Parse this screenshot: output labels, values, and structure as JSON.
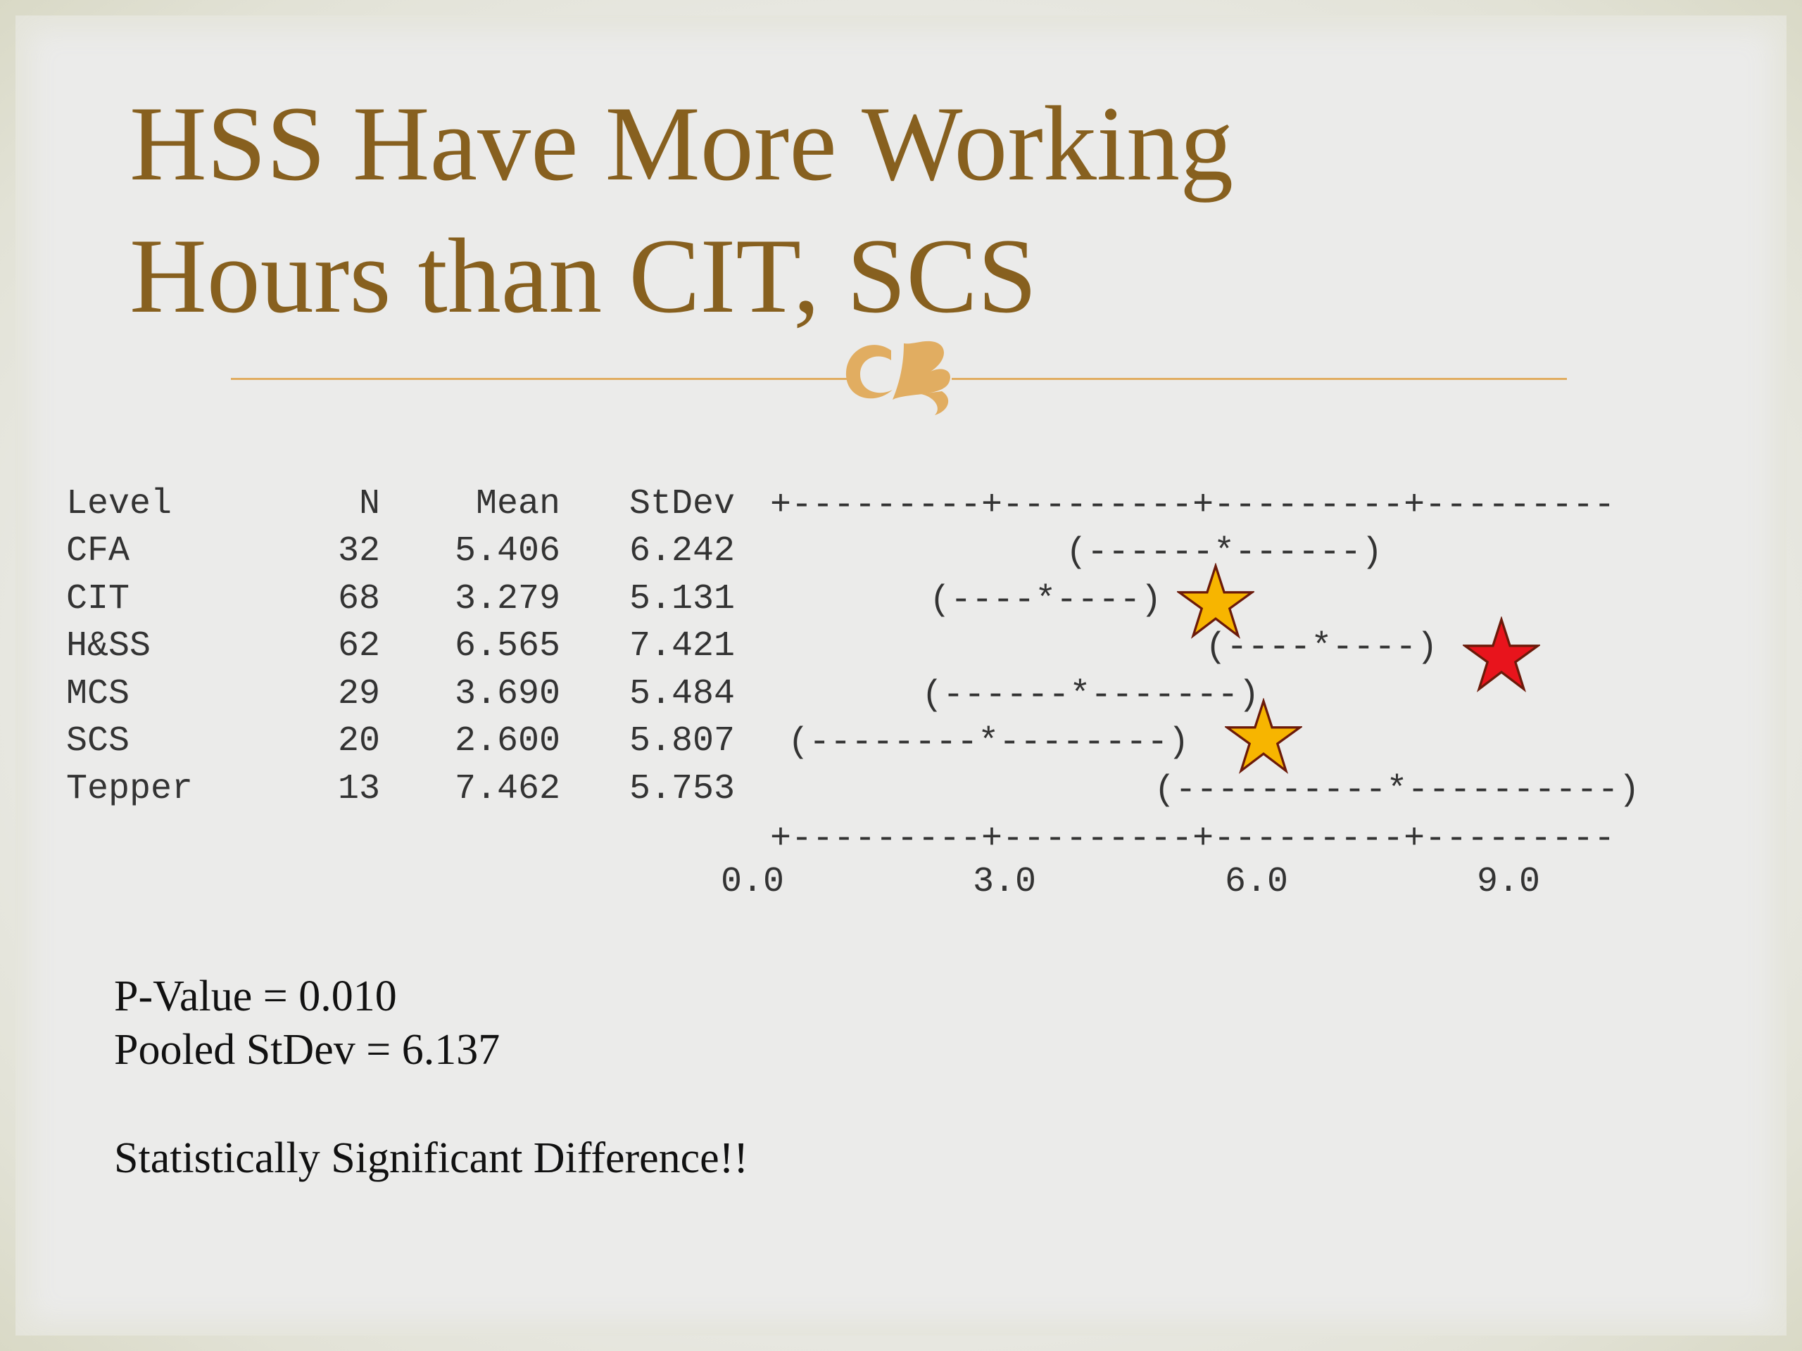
{
  "slide": {
    "title_line1": "HSS Have More Working",
    "title_line2": "Hours than CIT,  SCS",
    "ornament": "ornament-swirl-icon"
  },
  "table": {
    "headers": [
      "Level",
      "N",
      "Mean",
      "StDev"
    ],
    "rows": [
      {
        "level": "CFA",
        "n": "32",
        "mean": "5.406",
        "stdev": "6.242"
      },
      {
        "level": "CIT",
        "n": "68",
        "mean": "3.279",
        "stdev": "5.131"
      },
      {
        "level": "H&SS",
        "n": "62",
        "mean": "6.565",
        "stdev": "7.421"
      },
      {
        "level": "MCS",
        "n": "29",
        "mean": "3.690",
        "stdev": "5.484"
      },
      {
        "level": "SCS",
        "n": "20",
        "mean": "2.600",
        "stdev": "5.807"
      },
      {
        "level": "Tepper",
        "n": "13",
        "mean": "7.462",
        "stdev": "5.753"
      }
    ]
  },
  "ci_plot": {
    "axis_line": "+---------+---------+---------+---------",
    "ci_strings": [
      "(------*------)",
      "(----*----)",
      "(----*----)",
      "(------*-------)",
      "(--------*--------)",
      "(----------*----------)"
    ],
    "tick_labels": [
      "0.0",
      "3.0",
      "6.0",
      "9.0"
    ],
    "ticks": [
      0,
      3,
      6,
      9
    ],
    "stars": [
      {
        "row": "CIT",
        "color": "#f7b500",
        "icon": "star-icon"
      },
      {
        "row": "H&SS",
        "color": "#e8141c",
        "icon": "star-icon"
      },
      {
        "row": "SCS",
        "color": "#f7b500",
        "icon": "star-icon"
      }
    ]
  },
  "stats": {
    "p_value": "P-Value = 0.010",
    "pooled_stdev": "Pooled StDev = 6.137",
    "conclusion": "Statistically Significant Difference!!"
  },
  "colors": {
    "title": "#87601f",
    "divider": "#e1ad61",
    "star_gold": "#f7b500",
    "star_red": "#e8141c"
  }
}
